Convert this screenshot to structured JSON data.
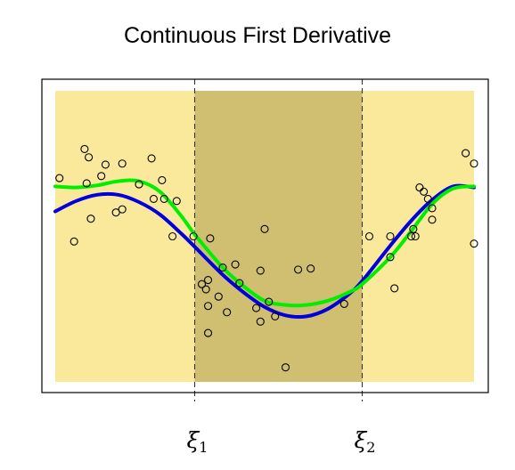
{
  "chart_data": {
    "type": "scatter",
    "title": "Continuous First Derivative",
    "xlabel": "",
    "ylabel": "",
    "xlim": [
      0,
      1
    ],
    "ylim": [
      -1.4,
      1.4
    ],
    "x_ticks": [
      {
        "label": "ξ",
        "subscript": "1",
        "x": 0.333
      },
      {
        "label": "ξ",
        "subscript": "2",
        "x": 0.733
      }
    ],
    "regions": [
      {
        "name": "left-region",
        "x_start": 0.0,
        "x_end": 0.333,
        "color": "#fbe99b"
      },
      {
        "name": "middle-region",
        "x_start": 0.333,
        "x_end": 0.733,
        "color": "#d1bf71"
      },
      {
        "name": "right-region",
        "x_start": 0.733,
        "x_end": 1.0,
        "color": "#fbe99b"
      }
    ],
    "points": [
      {
        "x": 0.01,
        "y": 0.56
      },
      {
        "x": 0.045,
        "y": -0.05
      },
      {
        "x": 0.07,
        "y": 0.84
      },
      {
        "x": 0.08,
        "y": 0.76
      },
      {
        "x": 0.075,
        "y": 0.51
      },
      {
        "x": 0.085,
        "y": 0.17
      },
      {
        "x": 0.11,
        "y": 0.58
      },
      {
        "x": 0.12,
        "y": 0.69
      },
      {
        "x": 0.145,
        "y": 0.23
      },
      {
        "x": 0.16,
        "y": 0.7
      },
      {
        "x": 0.16,
        "y": 0.26
      },
      {
        "x": 0.2,
        "y": 0.5
      },
      {
        "x": 0.23,
        "y": 0.75
      },
      {
        "x": 0.235,
        "y": 0.36
      },
      {
        "x": 0.255,
        "y": 0.54
      },
      {
        "x": 0.26,
        "y": 0.36
      },
      {
        "x": 0.28,
        "y": 0.0
      },
      {
        "x": 0.29,
        "y": 0.34
      },
      {
        "x": 0.33,
        "y": 0.0
      },
      {
        "x": 0.35,
        "y": -0.46
      },
      {
        "x": 0.365,
        "y": -0.42
      },
      {
        "x": 0.36,
        "y": -0.51
      },
      {
        "x": 0.365,
        "y": -0.67
      },
      {
        "x": 0.365,
        "y": -0.93
      },
      {
        "x": 0.39,
        "y": -0.58
      },
      {
        "x": 0.41,
        "y": -0.73
      },
      {
        "x": 0.37,
        "y": -0.02
      },
      {
        "x": 0.4,
        "y": -0.3
      },
      {
        "x": 0.43,
        "y": -0.27
      },
      {
        "x": 0.44,
        "y": -0.45
      },
      {
        "x": 0.48,
        "y": -0.69
      },
      {
        "x": 0.49,
        "y": -0.33
      },
      {
        "x": 0.49,
        "y": -0.82
      },
      {
        "x": 0.51,
        "y": -0.63
      },
      {
        "x": 0.55,
        "y": -1.26
      },
      {
        "x": 0.58,
        "y": -0.32
      },
      {
        "x": 0.61,
        "y": -0.31
      },
      {
        "x": 0.5,
        "y": 0.07
      },
      {
        "x": 0.525,
        "y": -0.77
      },
      {
        "x": 0.69,
        "y": -0.65
      },
      {
        "x": 0.75,
        "y": 0.0
      },
      {
        "x": 0.8,
        "y": 0.0
      },
      {
        "x": 0.8,
        "y": -0.2
      },
      {
        "x": 0.81,
        "y": -0.5
      },
      {
        "x": 0.85,
        "y": 0.0
      },
      {
        "x": 0.855,
        "y": 0.07
      },
      {
        "x": 0.86,
        "y": 0.0
      },
      {
        "x": 0.87,
        "y": 0.47
      },
      {
        "x": 0.88,
        "y": 0.43
      },
      {
        "x": 0.89,
        "y": 0.36
      },
      {
        "x": 0.9,
        "y": 0.27
      },
      {
        "x": 0.9,
        "y": 0.16
      },
      {
        "x": 0.98,
        "y": 0.8
      },
      {
        "x": 1.0,
        "y": 0.7
      },
      {
        "x": 1.0,
        "y": -0.07
      }
    ],
    "series": [
      {
        "color": "#0000dd",
        "x": [
          0.0,
          0.05,
          0.1,
          0.15,
          0.2,
          0.25,
          0.3,
          0.333,
          0.4,
          0.45,
          0.5,
          0.55,
          0.6,
          0.65,
          0.7,
          0.733,
          0.8,
          0.85,
          0.9,
          0.95,
          1.0
        ],
        "y": [
          0.24,
          0.34,
          0.4,
          0.4,
          0.33,
          0.21,
          0.03,
          -0.1,
          -0.37,
          -0.54,
          -0.68,
          -0.76,
          -0.77,
          -0.7,
          -0.56,
          -0.43,
          -0.09,
          0.15,
          0.35,
          0.48,
          0.47
        ]
      },
      {
        "color": "#00ee00",
        "x": [
          0.0,
          0.05,
          0.1,
          0.15,
          0.2,
          0.25,
          0.3,
          0.333,
          0.4,
          0.45,
          0.5,
          0.55,
          0.6,
          0.65,
          0.7,
          0.733,
          0.8,
          0.85,
          0.9,
          0.95,
          1.0
        ],
        "y": [
          0.48,
          0.47,
          0.49,
          0.53,
          0.53,
          0.43,
          0.2,
          0.02,
          -0.3,
          -0.48,
          -0.62,
          -0.66,
          -0.66,
          -0.62,
          -0.54,
          -0.46,
          -0.2,
          0.05,
          0.31,
          0.46,
          0.48
        ]
      }
    ]
  }
}
